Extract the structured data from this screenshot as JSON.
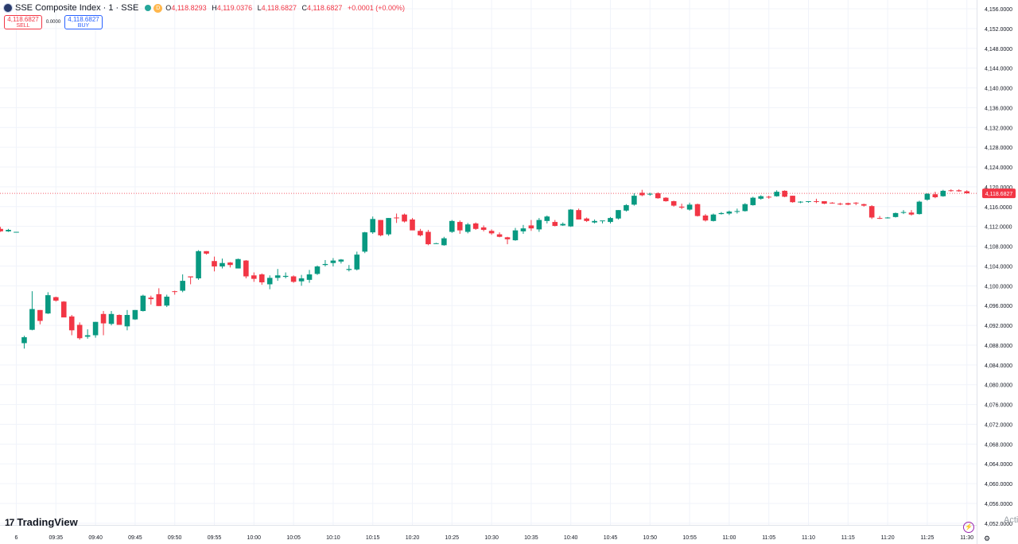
{
  "legend": {
    "symbol": "SSE Composite Index · 1 · SSE",
    "d_badge": "D",
    "open_label": "O",
    "open": "4,118.8293",
    "high_label": "H",
    "high": "4,119.0376",
    "low_label": "L",
    "low": "4,118.6827",
    "close_label": "C",
    "close": "4,118.6827",
    "change": "+0.0001 (+0.00%)"
  },
  "trade": {
    "sell_price": "4,118.6827",
    "sell_label": "SELL",
    "spread": "0.0000",
    "buy_price": "4,118.6827",
    "buy_label": "BUY"
  },
  "branding": {
    "logo_mark": "17",
    "logo_text": "TradingView"
  },
  "watermark": "Activa",
  "colors": {
    "up": "#089981",
    "down": "#f23645",
    "grid": "#f0f3fa",
    "price_line": "#f23645"
  },
  "icons": {
    "lightning": "lightning-icon",
    "settings": "gear-icon"
  },
  "chart_data": {
    "type": "candlestick",
    "last_price": "4,118.6827",
    "last_value": 4118.6827,
    "ylim": [
      4052,
      4157
    ],
    "y_ticks": [
      "4,156.0000",
      "4,152.0000",
      "4,148.0000",
      "4,144.0000",
      "4,140.0000",
      "4,136.0000",
      "4,132.0000",
      "4,128.0000",
      "4,124.0000",
      "4,120.0000",
      "4,116.0000",
      "4,112.0000",
      "4,108.0000",
      "4,104.0000",
      "4,100.0000",
      "4,096.0000",
      "4,092.0000",
      "4,088.0000",
      "4,084.0000",
      "4,080.0000",
      "4,076.0000",
      "4,072.0000",
      "4,068.0000",
      "4,064.0000",
      "4,060.0000",
      "4,056.0000",
      "4,052.0000"
    ],
    "x_ticks": [
      "6",
      "09:35",
      "09:40",
      "09:45",
      "09:50",
      "09:55",
      "10:00",
      "10:05",
      "10:10",
      "10:15",
      "10:20",
      "10:25",
      "10:30",
      "10:35",
      "10:40",
      "10:45",
      "10:50",
      "10:55",
      "11:00",
      "11:05",
      "11:10",
      "11:15",
      "11:20",
      "11:25",
      "11:30"
    ],
    "first_bar_slot": -2,
    "candles": [
      [
        4111.5,
        4111.9,
        4110.9,
        4111.0
      ],
      [
        4111.0,
        4111.5,
        4110.9,
        4111.3
      ],
      [
        4110.9,
        4110.9,
        4110.9,
        4110.9
      ],
      [
        4088.4,
        4089.9,
        4087.3,
        4089.6
      ],
      [
        4091.1,
        4098.9,
        4091.0,
        4095.3
      ],
      [
        4095.1,
        4095.1,
        4092.2,
        4092.9
      ],
      [
        4094.4,
        4098.7,
        4094.3,
        4098.1
      ],
      [
        4097.7,
        4097.8,
        4096.8,
        4097.0
      ],
      [
        4096.8,
        4096.9,
        4093.9,
        4093.6
      ],
      [
        4093.8,
        4094.1,
        4090.0,
        4091.0
      ],
      [
        4092.1,
        4092.6,
        4089.1,
        4089.4
      ],
      [
        4089.7,
        4091.2,
        4089.3,
        4090.0
      ],
      [
        4090.0,
        4092.7,
        4089.5,
        4092.7
      ],
      [
        4094.3,
        4094.9,
        4090.0,
        4092.4
      ],
      [
        4092.3,
        4094.9,
        4092.0,
        4094.3
      ],
      [
        4094.1,
        4094.2,
        4092.4,
        4092.1
      ],
      [
        4091.8,
        4095.1,
        4091.0,
        4094.1
      ],
      [
        4093.2,
        4095.1,
        4093.1,
        4095.1
      ],
      [
        4094.9,
        4098.2,
        4094.8,
        4098.0
      ],
      [
        4097.6,
        4098.0,
        4096.2,
        4097.3
      ],
      [
        4098.3,
        4099.5,
        4095.9,
        4095.9
      ],
      [
        4096.0,
        4098.2,
        4095.7,
        4097.8
      ],
      [
        4098.9,
        4099.0,
        4098.2,
        4098.8
      ],
      [
        4099.0,
        4102.3,
        4098.7,
        4101.0
      ],
      [
        4101.9,
        4101.8,
        4100.3,
        4101.7
      ],
      [
        4101.5,
        4107.2,
        4101.2,
        4107.0
      ],
      [
        4107.0,
        4107.0,
        4106.3,
        4106.5
      ],
      [
        4105.0,
        4105.9,
        4102.9,
        4103.9
      ],
      [
        4103.9,
        4105.5,
        4103.5,
        4104.6
      ],
      [
        4104.7,
        4104.8,
        4103.7,
        4104.2
      ],
      [
        4103.5,
        4105.5,
        4103.5,
        4105.4
      ],
      [
        4105.1,
        4105.2,
        4101.5,
        4101.9
      ],
      [
        4102.1,
        4102.7,
        4100.8,
        4101.4
      ],
      [
        4102.3,
        4102.5,
        4100.2,
        4100.7
      ],
      [
        4100.3,
        4102.1,
        4099.3,
        4101.6
      ],
      [
        4101.6,
        4103.4,
        4101.0,
        4102.1
      ],
      [
        4101.8,
        4102.7,
        4101.5,
        4102.0
      ],
      [
        4101.9,
        4102.1,
        4100.6,
        4100.8
      ],
      [
        4100.9,
        4102.2,
        4100.0,
        4101.5
      ],
      [
        4101.2,
        4103.2,
        4100.6,
        4102.3
      ],
      [
        4102.4,
        4104.1,
        4102.2,
        4103.9
      ],
      [
        4104.2,
        4105.2,
        4103.9,
        4104.4
      ],
      [
        4104.6,
        4105.6,
        4103.9,
        4105.1
      ],
      [
        4104.9,
        4105.4,
        4104.5,
        4105.3
      ],
      [
        4103.2,
        4104.2,
        4102.9,
        4103.4
      ],
      [
        4103.3,
        4106.9,
        4103.1,
        4106.3
      ],
      [
        4106.9,
        4110.9,
        4106.6,
        4110.8
      ],
      [
        4110.8,
        4114.0,
        4110.5,
        4113.5
      ],
      [
        4113.3,
        4113.3,
        4110.0,
        4110.2
      ],
      [
        4110.4,
        4113.7,
        4110.1,
        4113.7
      ],
      [
        4113.8,
        4114.6,
        4112.7,
        4113.7
      ],
      [
        4114.4,
        4114.6,
        4112.8,
        4113.0
      ],
      [
        4113.4,
        4113.7,
        4111.4,
        4111.2
      ],
      [
        4111.1,
        4111.5,
        4110.0,
        4110.2
      ],
      [
        4110.9,
        4111.3,
        4108.2,
        4108.4
      ],
      [
        4108.6,
        4108.7,
        4108.6,
        4108.6
      ],
      [
        4108.2,
        4109.9,
        4108.1,
        4109.6
      ],
      [
        4110.9,
        4113.3,
        4110.7,
        4113.1
      ],
      [
        4112.9,
        4113.2,
        4110.5,
        4111.2
      ],
      [
        4110.9,
        4112.7,
        4110.6,
        4112.4
      ],
      [
        4112.6,
        4112.8,
        4111.3,
        4111.5
      ],
      [
        4111.8,
        4112.2,
        4111.0,
        4111.3
      ],
      [
        4111.1,
        4111.4,
        4110.3,
        4110.6
      ],
      [
        4110.4,
        4110.8,
        4109.8,
        4109.9
      ],
      [
        4109.8,
        4109.9,
        4108.4,
        4109.4
      ],
      [
        4109.2,
        4111.7,
        4109.1,
        4111.2
      ],
      [
        4111.0,
        4112.3,
        4110.5,
        4111.6
      ],
      [
        4112.2,
        4113.3,
        4111.1,
        4111.6
      ],
      [
        4111.4,
        4113.7,
        4110.9,
        4113.3
      ],
      [
        4113.1,
        4114.2,
        4112.6,
        4114.0
      ],
      [
        4112.9,
        4113.3,
        4112.0,
        4112.1
      ],
      [
        4112.2,
        4112.8,
        4112.1,
        4112.5
      ],
      [
        4112.0,
        4115.5,
        4111.9,
        4115.4
      ],
      [
        4115.3,
        4115.6,
        4113.4,
        4113.4
      ],
      [
        4113.6,
        4113.8,
        4112.9,
        4113.1
      ],
      [
        4112.8,
        4113.4,
        4112.6,
        4113.1
      ],
      [
        4113.1,
        4113.1,
        4112.6,
        4113.2
      ],
      [
        4112.9,
        4113.9,
        4112.6,
        4113.7
      ],
      [
        4113.6,
        4115.3,
        4113.4,
        4115.3
      ],
      [
        4115.2,
        4116.5,
        4115.0,
        4116.3
      ],
      [
        4116.4,
        4118.7,
        4116.2,
        4118.2
      ],
      [
        4118.8,
        4119.4,
        4118.1,
        4118.3
      ],
      [
        4118.5,
        4118.8,
        4118.2,
        4118.6
      ],
      [
        4118.7,
        4118.9,
        4117.6,
        4117.7
      ],
      [
        4117.8,
        4117.9,
        4117.0,
        4117.1
      ],
      [
        4117.1,
        4117.2,
        4116.0,
        4116.2
      ],
      [
        4116.0,
        4116.6,
        4115.5,
        4115.8
      ],
      [
        4115.4,
        4116.8,
        4115.2,
        4116.4
      ],
      [
        4116.5,
        4116.6,
        4114.0,
        4114.1
      ],
      [
        4114.2,
        4114.5,
        4113.0,
        4113.2
      ],
      [
        4113.1,
        4114.6,
        4113.0,
        4114.4
      ],
      [
        4114.5,
        4114.9,
        4114.4,
        4114.7
      ],
      [
        4114.6,
        4115.2,
        4114.3,
        4115.0
      ],
      [
        4115.0,
        4115.6,
        4114.6,
        4115.1
      ],
      [
        4115.1,
        4116.7,
        4115.0,
        4116.5
      ],
      [
        4116.3,
        4118.0,
        4116.2,
        4117.8
      ],
      [
        4117.6,
        4118.3,
        4117.4,
        4118.1
      ],
      [
        4118.0,
        4118.2,
        4117.6,
        4117.9
      ],
      [
        4118.1,
        4119.3,
        4118.0,
        4119.0
      ],
      [
        4119.2,
        4119.3,
        4117.9,
        4118.0
      ],
      [
        4118.2,
        4118.2,
        4116.8,
        4116.9
      ],
      [
        4116.9,
        4117.1,
        4116.7,
        4117.0
      ],
      [
        4117.0,
        4117.1,
        4116.8,
        4117.1
      ],
      [
        4117.1,
        4117.6,
        4116.7,
        4117.0
      ],
      [
        4117.1,
        4117.1,
        4116.5,
        4116.6
      ],
      [
        4116.8,
        4116.9,
        4116.6,
        4116.7
      ],
      [
        4116.6,
        4116.8,
        4116.3,
        4116.5
      ],
      [
        4116.7,
        4116.8,
        4116.3,
        4116.4
      ],
      [
        4116.8,
        4116.9,
        4116.3,
        4116.7
      ],
      [
        4116.5,
        4116.6,
        4116.0,
        4116.2
      ],
      [
        4116.1,
        4116.3,
        4113.5,
        4113.8
      ],
      [
        4113.7,
        4114.1,
        4113.5,
        4113.6
      ],
      [
        4113.7,
        4113.9,
        4113.6,
        4113.8
      ],
      [
        4113.9,
        4114.8,
        4113.8,
        4114.7
      ],
      [
        4114.8,
        4115.3,
        4114.5,
        4114.9
      ],
      [
        4114.8,
        4115.3,
        4114.2,
        4114.4
      ],
      [
        4114.5,
        4117.2,
        4114.4,
        4117.0
      ],
      [
        4117.4,
        4118.7,
        4117.2,
        4118.6
      ],
      [
        4118.5,
        4119.0,
        4117.7,
        4117.9
      ],
      [
        4118.1,
        4119.4,
        4118.0,
        4119.2
      ],
      [
        4119.3,
        4119.5,
        4119.0,
        4119.2
      ],
      [
        4119.3,
        4119.5,
        4119.0,
        4119.1
      ],
      [
        4119.1,
        4119.3,
        4118.6,
        4118.7
      ],
      [
        4118.7,
        4119.0,
        4118.4,
        4118.5
      ],
      [
        4118.5,
        4119.0,
        4118.4,
        4118.6
      ],
      [
        4118.7,
        4119.1,
        4118.5,
        4118.8
      ],
      [
        4118.9,
        4119.0,
        4118.6,
        4118.7
      ]
    ]
  }
}
